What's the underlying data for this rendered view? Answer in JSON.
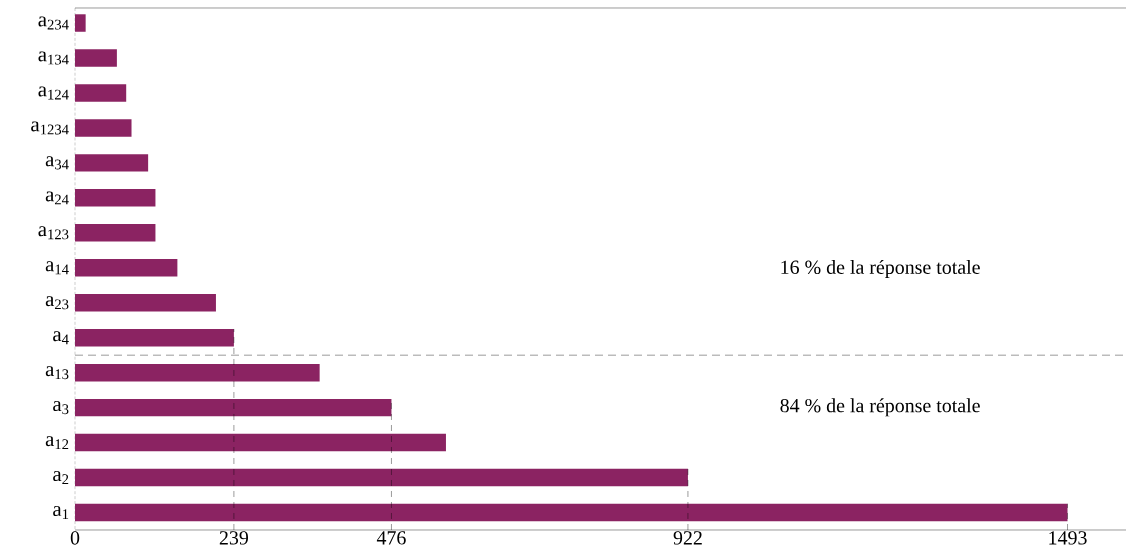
{
  "chart_data": {
    "type": "bar",
    "orientation": "horizontal",
    "color": "#8b2362",
    "categories": [
      "a$_{234}$",
      "a$_{134}$",
      "a$_{124}$",
      "a$_{1234}$",
      "a$_{34}$",
      "a$_{24}$",
      "a$_{123}$",
      "a$_{14}$",
      "a$_{23}$",
      "a$_{4}$",
      "a$_{13}$",
      "a$_{3}$",
      "a$_{12}$",
      "a$_{2}$",
      "a$_{1}$"
    ],
    "values": [
      16,
      63,
      77,
      85,
      110,
      121,
      121,
      154,
      212,
      239,
      368,
      476,
      558,
      922,
      1493
    ],
    "value_labels": [
      null,
      null,
      null,
      null,
      null,
      null,
      null,
      null,
      null,
      "239",
      null,
      "476",
      null,
      "922",
      "1493"
    ],
    "xlim": [
      0,
      1581
    ],
    "annotations": [
      "16 % de la réponse totale",
      "84 % de la réponse totale",
      "0"
    ]
  }
}
